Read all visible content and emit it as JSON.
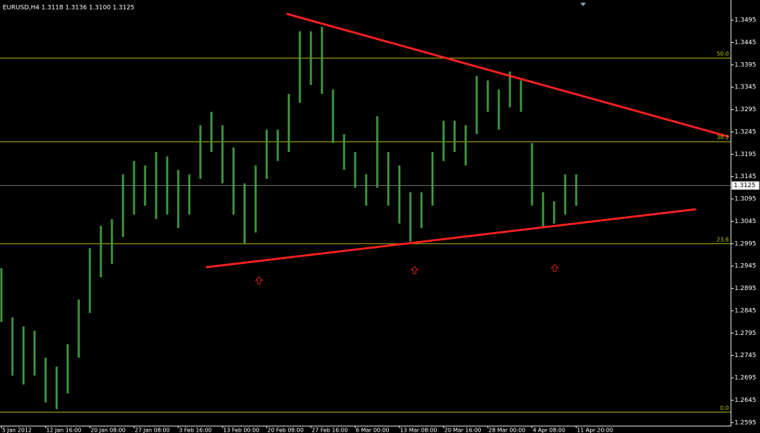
{
  "chart_data": {
    "type": "range-bar",
    "title": "EURUSD,H4  1.3118 1.3136 1.3100 1.3125",
    "categories": [
      "5 Jan 2012",
      null,
      null,
      null,
      "12 Jan 16:00",
      null,
      null,
      null,
      "20 Jan 08:00",
      null,
      null,
      null,
      "27 Jan 08:00",
      null,
      null,
      null,
      "3 Feb 16:00",
      null,
      null,
      null,
      "13 Feb 00:00",
      null,
      null,
      null,
      "20 Feb 08:00",
      null,
      null,
      null,
      "27 Feb 16:00",
      null,
      null,
      null,
      "6 Mar 00:00",
      null,
      null,
      null,
      "13 Mar 08:00",
      null,
      null,
      null,
      "20 Mar 16:00",
      null,
      null,
      null,
      "28 Mar 00:00",
      null,
      null,
      null,
      "4 Apr 08:00",
      null,
      null,
      null,
      "11 Apr 20:00"
    ],
    "high": [
      1.294,
      1.283,
      1.281,
      1.28,
      1.274,
      1.272,
      1.277,
      1.287,
      1.2985,
      1.3035,
      1.305,
      1.315,
      1.318,
      1.317,
      1.32,
      1.319,
      1.316,
      1.315,
      1.326,
      1.329,
      1.326,
      1.321,
      1.313,
      1.317,
      1.325,
      1.325,
      1.333,
      1.347,
      1.347,
      1.348,
      1.334,
      1.324,
      1.32,
      1.315,
      1.328,
      1.32,
      1.317,
      1.311,
      1.311,
      1.32,
      1.327,
      1.327,
      1.326,
      1.337,
      1.336,
      1.334,
      1.338,
      1.336,
      1.322,
      1.311,
      1.309,
      1.315,
      1.315
    ],
    "low": [
      1.282,
      1.27,
      1.268,
      1.27,
      1.264,
      1.2625,
      1.266,
      1.274,
      1.284,
      1.292,
      1.295,
      1.301,
      1.306,
      1.308,
      1.305,
      1.306,
      1.303,
      1.306,
      1.314,
      1.32,
      1.313,
      1.306,
      1.2995,
      1.302,
      1.314,
      1.318,
      1.32,
      1.331,
      1.335,
      1.333,
      1.322,
      1.316,
      1.312,
      1.308,
      1.312,
      1.308,
      1.304,
      1.3,
      1.303,
      1.308,
      1.318,
      1.32,
      1.317,
      1.324,
      1.329,
      1.325,
      1.33,
      1.329,
      1.308,
      1.303,
      1.304,
      1.306,
      1.308
    ],
    "color": "#3f9a3f",
    "ylim": [
      1.2587,
      1.354
    ],
    "yticks": [
      1.2595,
      1.2645,
      1.2695,
      1.2745,
      1.2795,
      1.2845,
      1.2895,
      1.2945,
      1.2995,
      1.3045,
      1.3095,
      1.3145,
      1.3195,
      1.3245,
      1.3295,
      1.3345,
      1.3395,
      1.3445,
      1.3495
    ],
    "fib_levels": [
      {
        "label": "50.0",
        "price": 1.341
      },
      {
        "label": "38.2",
        "price": 1.3223
      },
      {
        "label": "23.6",
        "price": 1.2995
      },
      {
        "label": "0.0",
        "price": 1.2618
      }
    ],
    "fib_color": "#c8c800",
    "last_price": 1.3125
  }
}
